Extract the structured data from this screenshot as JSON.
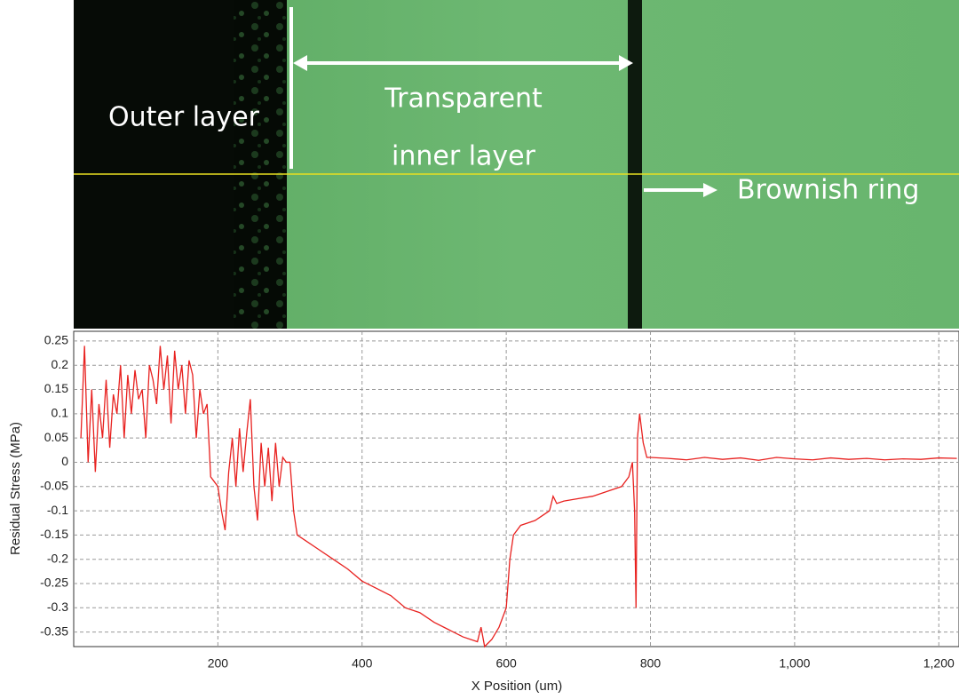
{
  "chart_data": {
    "type": "line",
    "x_label": "X Position (um)",
    "y_label": "Residual Stress (MPa)",
    "annotations": [
      "Outer layer",
      "Transparent",
      "inner layer",
      "Brownish ring"
    ],
    "xlim": [
      0,
      1228
    ],
    "ylim": [
      -0.38,
      0.27
    ],
    "xticks": [
      200,
      400,
      600,
      800,
      {
        "value": 1000,
        "label": "1,000"
      },
      {
        "value": 1200,
        "label": "1,200"
      }
    ],
    "yticks": [
      0.25,
      0.2,
      0.15,
      0.1,
      0.05,
      0,
      -0.05,
      -0.1,
      -0.15,
      -0.2,
      -0.25,
      -0.3,
      -0.35
    ],
    "grid": true,
    "series": [
      {
        "color": "#e8211f",
        "x": [
          10,
          15,
          20,
          25,
          30,
          35,
          40,
          45,
          50,
          55,
          60,
          65,
          70,
          75,
          80,
          85,
          90,
          95,
          100,
          105,
          110,
          115,
          120,
          125,
          130,
          135,
          140,
          145,
          150,
          155,
          160,
          165,
          170,
          175,
          180,
          185,
          190,
          195,
          200,
          205,
          210,
          215,
          220,
          225,
          230,
          235,
          240,
          245,
          250,
          255,
          260,
          265,
          270,
          275,
          280,
          285,
          290,
          295,
          300,
          305,
          310,
          320,
          340,
          360,
          380,
          400,
          420,
          440,
          460,
          480,
          500,
          520,
          540,
          560,
          565,
          570,
          580,
          590,
          600,
          605,
          610,
          620,
          630,
          640,
          650,
          660,
          665,
          670,
          680,
          700,
          720,
          740,
          760,
          770,
          775,
          778,
          780,
          782,
          785,
          790,
          795,
          800,
          825,
          850,
          875,
          900,
          925,
          950,
          975,
          1000,
          1025,
          1050,
          1075,
          1100,
          1125,
          1150,
          1175,
          1200,
          1225
        ],
        "values": [
          0.05,
          0.24,
          0.0,
          0.15,
          -0.02,
          0.12,
          0.05,
          0.17,
          0.03,
          0.14,
          0.1,
          0.2,
          0.05,
          0.18,
          0.1,
          0.19,
          0.13,
          0.15,
          0.05,
          0.2,
          0.17,
          0.12,
          0.24,
          0.15,
          0.22,
          0.08,
          0.23,
          0.15,
          0.2,
          0.1,
          0.21,
          0.18,
          0.05,
          0.15,
          0.1,
          0.12,
          -0.03,
          -0.04,
          -0.05,
          -0.1,
          -0.14,
          -0.02,
          0.05,
          -0.05,
          0.07,
          -0.02,
          0.06,
          0.13,
          -0.05,
          -0.12,
          0.04,
          -0.05,
          0.03,
          -0.08,
          0.04,
          -0.05,
          0.01,
          0.0,
          0.0,
          -0.1,
          -0.15,
          -0.16,
          -0.18,
          -0.2,
          -0.22,
          -0.245,
          -0.26,
          -0.275,
          -0.3,
          -0.31,
          -0.33,
          -0.345,
          -0.36,
          -0.37,
          -0.34,
          -0.38,
          -0.365,
          -0.34,
          -0.3,
          -0.2,
          -0.15,
          -0.13,
          -0.125,
          -0.12,
          -0.11,
          -0.1,
          -0.07,
          -0.085,
          -0.08,
          -0.075,
          -0.07,
          -0.06,
          -0.05,
          -0.03,
          0.0,
          -0.1,
          -0.3,
          0.05,
          0.1,
          0.04,
          0.01,
          0.01,
          0.008,
          0.005,
          0.01,
          0.006,
          0.009,
          0.004,
          0.01,
          0.007,
          0.005,
          0.009,
          0.006,
          0.008,
          0.005,
          0.007,
          0.006,
          0.009,
          0.008
        ]
      }
    ]
  }
}
